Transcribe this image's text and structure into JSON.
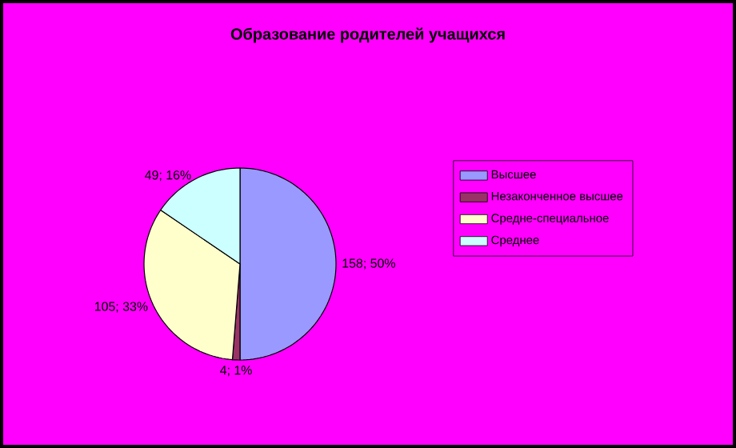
{
  "chart_data": {
    "type": "pie",
    "title": "Образование родителей учащихся",
    "categories": [
      "Высшее",
      "Незаконченное высшее",
      "Средне-специальное",
      "Среднее"
    ],
    "values": [
      158,
      4,
      105,
      49
    ],
    "colors": [
      "#9999ff",
      "#993366",
      "#ffffcc",
      "#ccffff"
    ],
    "value_labels": [
      "158; 50%",
      "4; 1%",
      "105; 33%",
      "49; 16%"
    ],
    "legend": "right"
  }
}
